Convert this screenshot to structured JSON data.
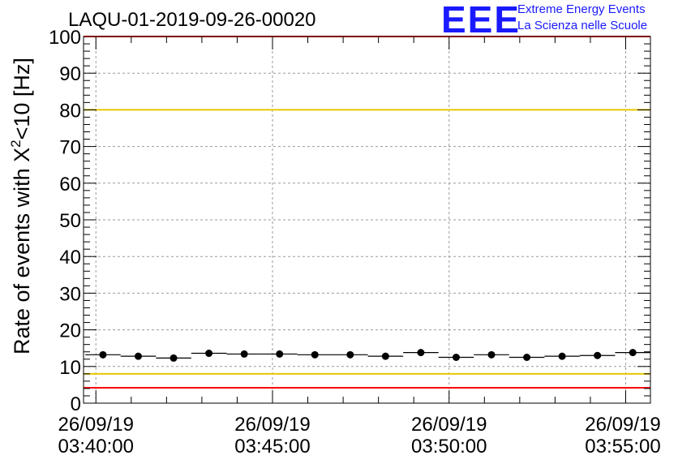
{
  "chart_data": {
    "type": "scatter",
    "title": "LAQU-01-2019-09-26-00020",
    "ylabel_prefix": "Rate of events with X",
    "ylabel_sup": "2",
    "ylabel_suffix": "<10 [Hz]",
    "xlabel": "",
    "ylim": [
      0,
      100
    ],
    "xlim_minutes": [
      -0.35,
      15.7
    ],
    "y_ticks": [
      0,
      10,
      20,
      30,
      40,
      50,
      60,
      70,
      80,
      90,
      100
    ],
    "y_tick_labels": [
      "0",
      "10",
      "20",
      "30",
      "40",
      "50",
      "60",
      "70",
      "80",
      "90",
      "100"
    ],
    "x_ticks_minutes": [
      0,
      5,
      10,
      15
    ],
    "x_tick_labels": [
      {
        "date": "26/09/19",
        "time": "03:40:00"
      },
      {
        "date": "26/09/19",
        "time": "03:45:00"
      },
      {
        "date": "26/09/19",
        "time": "03:50:00"
      },
      {
        "date": "26/09/19",
        "time": "03:55:00"
      }
    ],
    "grid": true,
    "bin_width_minutes": 1.0,
    "points": [
      {
        "x": 0.2,
        "y": 13.2
      },
      {
        "x": 1.2,
        "y": 12.8
      },
      {
        "x": 2.2,
        "y": 12.3
      },
      {
        "x": 3.2,
        "y": 13.6
      },
      {
        "x": 4.2,
        "y": 13.4
      },
      {
        "x": 5.2,
        "y": 13.4
      },
      {
        "x": 6.2,
        "y": 13.2
      },
      {
        "x": 7.2,
        "y": 13.2
      },
      {
        "x": 8.2,
        "y": 12.8
      },
      {
        "x": 9.2,
        "y": 13.8
      },
      {
        "x": 10.2,
        "y": 12.5
      },
      {
        "x": 11.2,
        "y": 13.2
      },
      {
        "x": 12.2,
        "y": 12.5
      },
      {
        "x": 13.2,
        "y": 12.8
      },
      {
        "x": 14.2,
        "y": 13.0
      },
      {
        "x": 15.2,
        "y": 13.8
      }
    ],
    "reference_lines": [
      {
        "y": 100,
        "color": "#ff0000"
      },
      {
        "y": 80,
        "color": "#e8c800"
      },
      {
        "y": 8,
        "color": "#e8c800"
      },
      {
        "y": 4.2,
        "color": "#ff0000"
      }
    ]
  },
  "logo": {
    "mark": "EEE",
    "line1": "Extreme Energy Events",
    "line2": "La Scienza nelle Scuole",
    "color": "#1a1aff"
  }
}
